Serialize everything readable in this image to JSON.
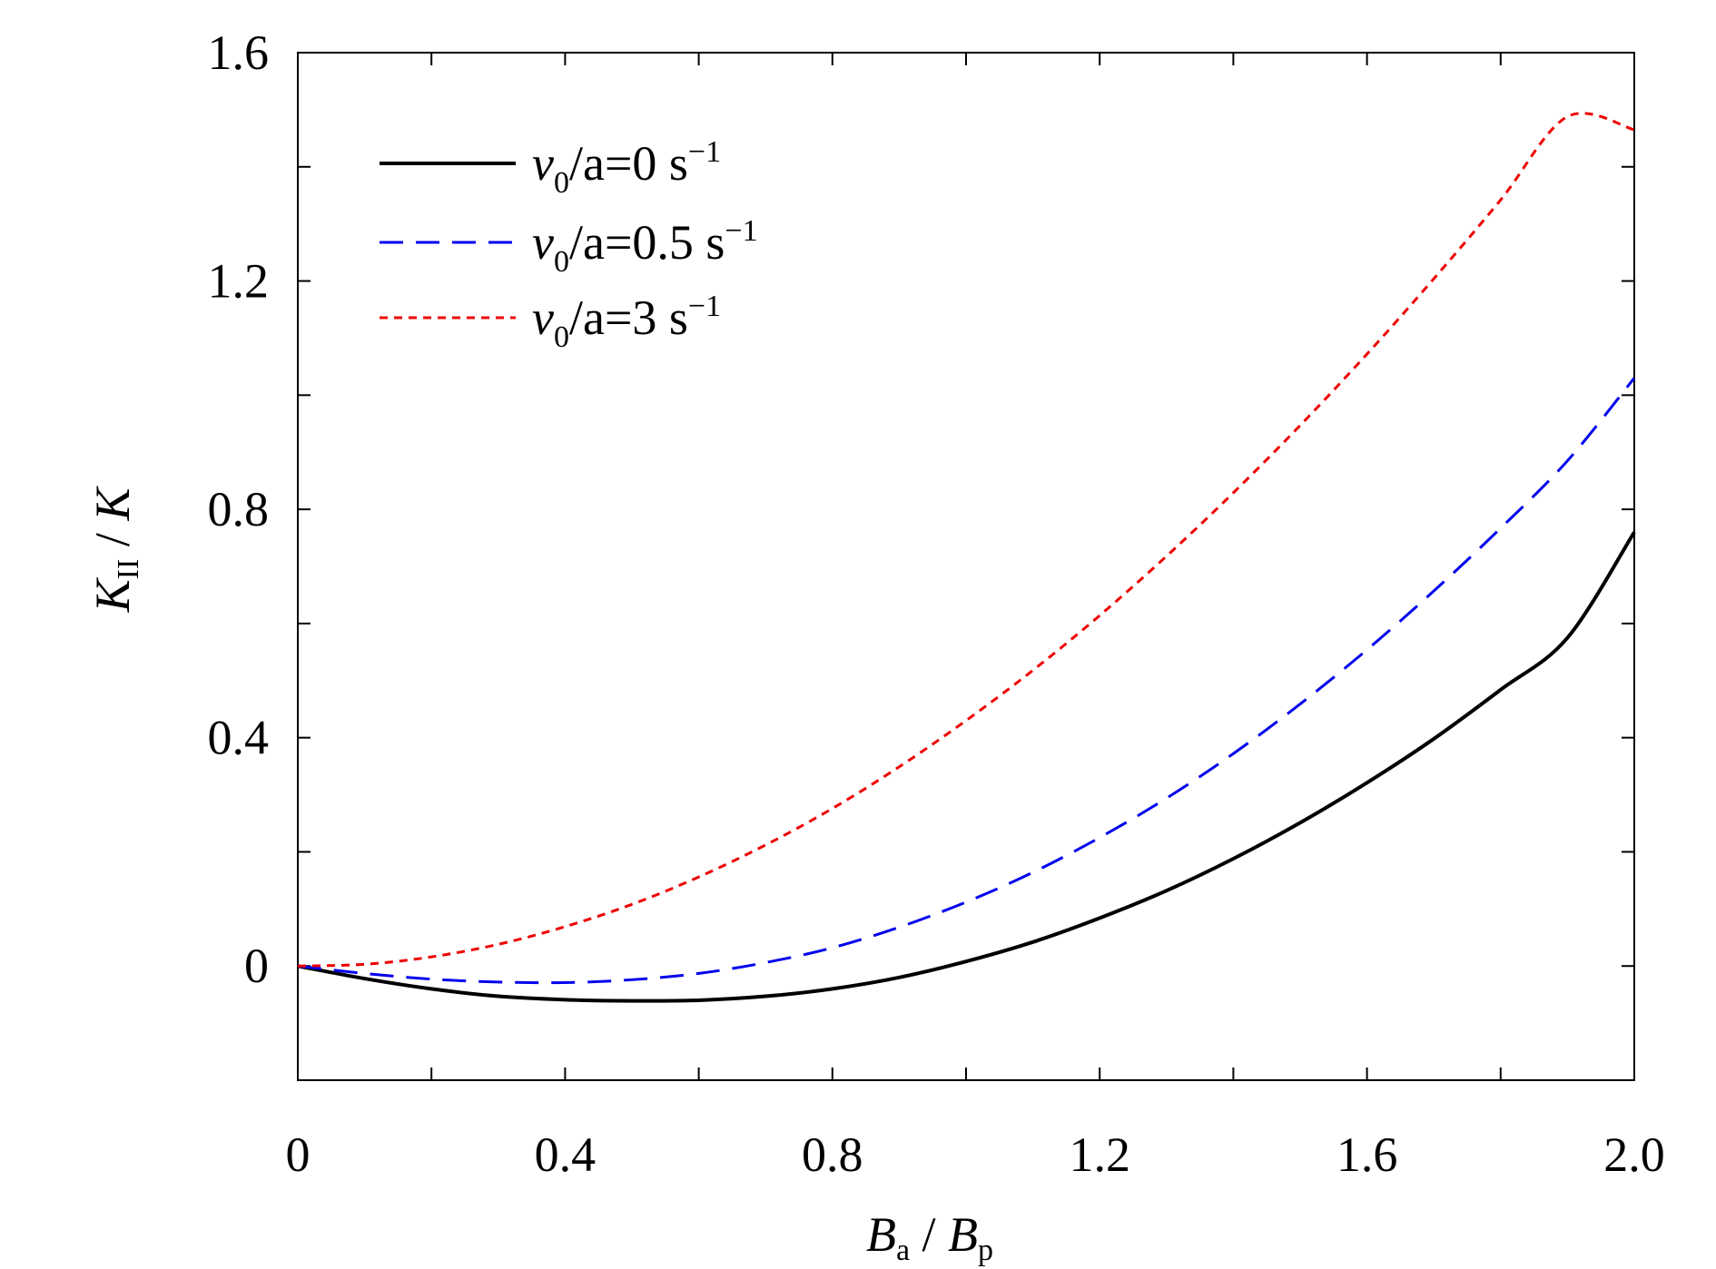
{
  "chart_data": {
    "type": "line",
    "xlabel": {
      "main": "B",
      "sub": "a",
      "sep": " / ",
      "main2": "B",
      "sub2": "p"
    },
    "ylabel": {
      "main": "K",
      "sub": "II",
      "sep": " / ",
      "main2": "K"
    },
    "xlim": [
      0,
      2.0
    ],
    "ylim": [
      -0.2,
      1.6
    ],
    "xticks": [
      0,
      0.4,
      0.8,
      1.2,
      1.6,
      2.0
    ],
    "xtick_labels": [
      "0",
      "0.4",
      "0.8",
      "1.2",
      "1.6",
      "2.0"
    ],
    "yticks": [
      0,
      0.4,
      0.8,
      1.2,
      1.6
    ],
    "ytick_labels": [
      "0",
      "0.4",
      "0.8",
      "1.2",
      "1.6"
    ],
    "grid": false,
    "legend_position": "top-left",
    "x": [
      0,
      0.1,
      0.2,
      0.3,
      0.4,
      0.5,
      0.6,
      0.7,
      0.8,
      0.9,
      1.0,
      1.1,
      1.2,
      1.3,
      1.4,
      1.5,
      1.6,
      1.7,
      1.8,
      1.9,
      2.0
    ],
    "series": [
      {
        "legend": {
          "v": "v",
          "vsub": "0",
          "rest": "/a=0 s",
          "sup": "−1"
        },
        "color": "#000000",
        "dash": "solid",
        "values": [
          0,
          -0.022,
          -0.04,
          -0.053,
          -0.059,
          -0.061,
          -0.06,
          -0.053,
          -0.04,
          -0.02,
          0.008,
          0.042,
          0.084,
          0.132,
          0.188,
          0.251,
          0.321,
          0.398,
          0.484,
          0.575,
          0.76
        ]
      },
      {
        "legend": {
          "v": "v",
          "vsub": "0",
          "rest": "/a=0.5 s",
          "sup": "−1"
        },
        "color": "#0000ee",
        "dash": "long",
        "values": [
          0,
          -0.013,
          -0.023,
          -0.028,
          -0.029,
          -0.024,
          -0.013,
          0.006,
          0.032,
          0.068,
          0.112,
          0.164,
          0.225,
          0.294,
          0.372,
          0.459,
          0.554,
          0.657,
          0.767,
          0.885,
          1.03
        ]
      },
      {
        "legend": {
          "v": "v",
          "vsub": "0",
          "rest": "/a=3 s",
          "sup": "−1"
        },
        "color": "#ee0000",
        "dash": "short",
        "values": [
          0,
          0.003,
          0.016,
          0.038,
          0.069,
          0.108,
          0.156,
          0.212,
          0.276,
          0.349,
          0.43,
          0.518,
          0.614,
          0.718,
          0.829,
          0.947,
          1.072,
          1.204,
          1.342,
          1.488,
          1.465
        ]
      }
    ]
  }
}
